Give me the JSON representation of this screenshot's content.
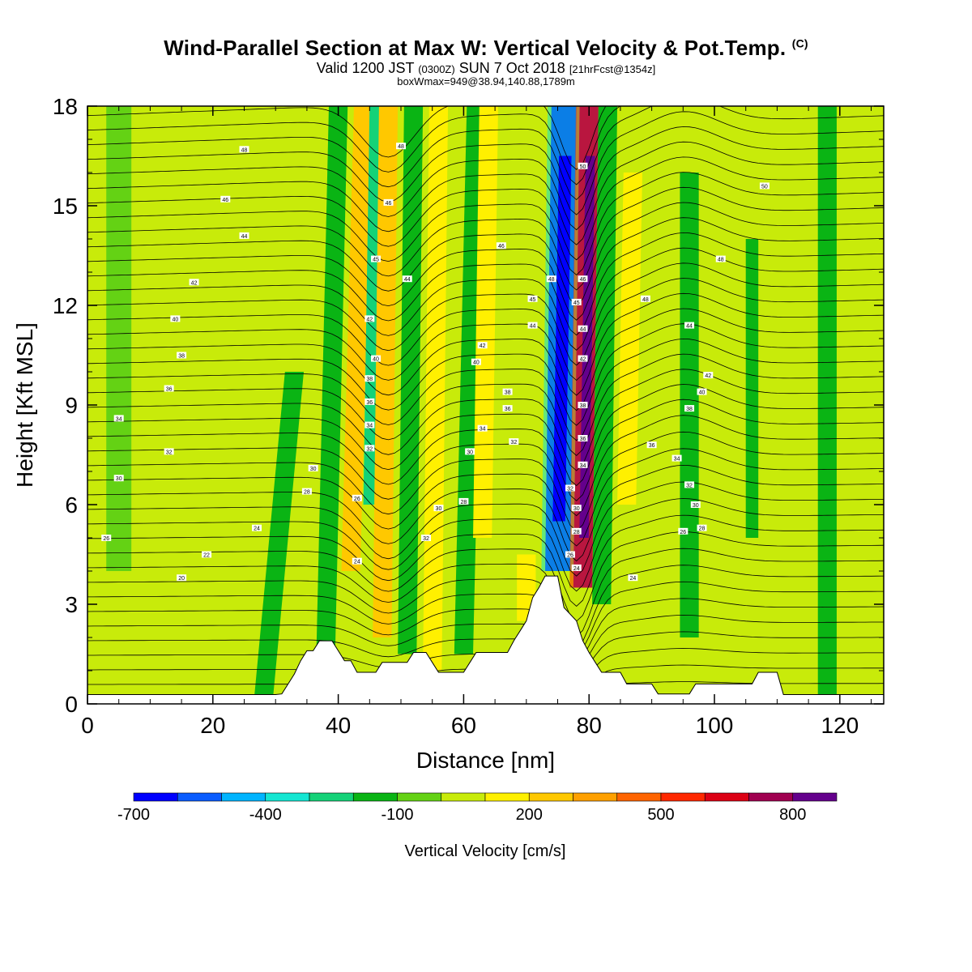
{
  "header": {
    "title_main": "Wind-Parallel Section at Max W: Vertical Velocity & Pot.Temp.",
    "title_mark": "(C)",
    "subtitle_a": "Valid 1200 JST",
    "subtitle_b": "(0300Z)",
    "subtitle_c": "SUN 7 Oct 2018",
    "subtitle_d": "[21hrFcst@1354z]",
    "box_info": "boxWmax=949@38.94,140.88,1789m"
  },
  "chart_data": {
    "type": "heatmap",
    "xlabel": "Distance [nm]",
    "ylabel": "Height [Kft MSL]",
    "xlim": [
      0,
      127
    ],
    "ylim": [
      0,
      18
    ],
    "x_ticks": [
      "0",
      "20",
      "40",
      "60",
      "80",
      "100",
      "120"
    ],
    "y_ticks": [
      "0",
      "3",
      "6",
      "9",
      "12",
      "15",
      "18"
    ],
    "colorbar": {
      "label": "Vertical Velocity [cm/s]",
      "min": -700,
      "max": 900,
      "step": 100,
      "tick_labels": [
        "-700",
        "-400",
        "-100",
        "200",
        "500",
        "800"
      ],
      "tick_values": [
        -700,
        -400,
        -100,
        200,
        500,
        800
      ],
      "colors": [
        "#0000ff",
        "#0a5cff",
        "#00b4ff",
        "#14e6d2",
        "#14d278",
        "#0ab414",
        "#64d214",
        "#c8eb0a",
        "#fff000",
        "#ffc800",
        "#ffa000",
        "#ff6400",
        "#ff2800",
        "#dc0014",
        "#a00050",
        "#64008c"
      ]
    },
    "terrain": [
      {
        "x": 0,
        "h": 0.28
      },
      {
        "x": 30,
        "h": 0.28
      },
      {
        "x": 31,
        "h": 0.3
      },
      {
        "x": 32,
        "h": 0.6
      },
      {
        "x": 33,
        "h": 0.9
      },
      {
        "x": 34,
        "h": 1.3
      },
      {
        "x": 35,
        "h": 1.6
      },
      {
        "x": 36,
        "h": 1.6
      },
      {
        "x": 37,
        "h": 1.9
      },
      {
        "x": 39,
        "h": 1.9
      },
      {
        "x": 40,
        "h": 1.6
      },
      {
        "x": 41,
        "h": 1.3
      },
      {
        "x": 42,
        "h": 1.3
      },
      {
        "x": 43,
        "h": 0.95
      },
      {
        "x": 46,
        "h": 0.95
      },
      {
        "x": 47,
        "h": 1.25
      },
      {
        "x": 51,
        "h": 1.25
      },
      {
        "x": 52,
        "h": 1.55
      },
      {
        "x": 54,
        "h": 1.55
      },
      {
        "x": 55,
        "h": 1.25
      },
      {
        "x": 56,
        "h": 0.95
      },
      {
        "x": 60,
        "h": 0.95
      },
      {
        "x": 61,
        "h": 1.25
      },
      {
        "x": 62,
        "h": 1.55
      },
      {
        "x": 67,
        "h": 1.55
      },
      {
        "x": 68,
        "h": 1.9
      },
      {
        "x": 69,
        "h": 2.2
      },
      {
        "x": 70,
        "h": 2.5
      },
      {
        "x": 71,
        "h": 3.2
      },
      {
        "x": 72,
        "h": 3.5
      },
      {
        "x": 73,
        "h": 3.85
      },
      {
        "x": 75,
        "h": 3.85
      },
      {
        "x": 76,
        "h": 2.9
      },
      {
        "x": 78,
        "h": 2.5
      },
      {
        "x": 79,
        "h": 1.9
      },
      {
        "x": 80,
        "h": 1.55
      },
      {
        "x": 81,
        "h": 1.25
      },
      {
        "x": 82,
        "h": 0.95
      },
      {
        "x": 85,
        "h": 0.95
      },
      {
        "x": 86,
        "h": 0.6
      },
      {
        "x": 90,
        "h": 0.6
      },
      {
        "x": 91,
        "h": 0.3
      },
      {
        "x": 96,
        "h": 0.3
      },
      {
        "x": 97,
        "h": 0.6
      },
      {
        "x": 106,
        "h": 0.6
      },
      {
        "x": 107,
        "h": 0.95
      },
      {
        "x": 110,
        "h": 0.95
      },
      {
        "x": 111,
        "h": 0.28
      },
      {
        "x": 127,
        "h": 0.28
      }
    ],
    "w_bands": [
      {
        "x": 5,
        "w": 4,
        "v": -90,
        "y1": 4,
        "y2": 18,
        "slant": 0
      },
      {
        "x": 14,
        "w": 3,
        "v": 90,
        "y1": 2,
        "y2": 18,
        "slant": 0
      },
      {
        "x": 28,
        "w": 3,
        "v": -110,
        "y1": 0,
        "y2": 10,
        "slant": 5
      },
      {
        "x": 38,
        "w": 3,
        "v": -140,
        "y1": 1.5,
        "y2": 18,
        "slant": 2
      },
      {
        "x": 42,
        "w": 3,
        "v": 230,
        "y1": 4,
        "y2": 18,
        "slant": 2
      },
      {
        "x": 45,
        "w": 2,
        "v": -260,
        "y1": 6,
        "y2": 18,
        "slant": 1
      },
      {
        "x": 47,
        "w": 3,
        "v": 280,
        "y1": 2,
        "y2": 18,
        "slant": 1
      },
      {
        "x": 51,
        "w": 3,
        "v": -140,
        "y1": 1.5,
        "y2": 18,
        "slant": 1
      },
      {
        "x": 55,
        "w": 3,
        "v": 170,
        "y1": 1,
        "y2": 18,
        "slant": 1
      },
      {
        "x": 60,
        "w": 3,
        "v": -140,
        "y1": 1.5,
        "y2": 18,
        "slant": 2
      },
      {
        "x": 63,
        "w": 3,
        "v": 150,
        "y1": 5,
        "y2": 18,
        "slant": 1
      },
      {
        "x": 70,
        "w": 3,
        "v": 170,
        "y1": 2.5,
        "y2": 4.5,
        "slant": 0
      },
      {
        "x": 75,
        "w": 4,
        "v": -650,
        "y1": 4,
        "y2": 18,
        "slant": 1
      },
      {
        "x": 79,
        "w": 3,
        "v": 820,
        "y1": 3.5,
        "y2": 18,
        "slant": 1
      },
      {
        "x": 82,
        "w": 3,
        "v": -150,
        "y1": 3,
        "y2": 18,
        "slant": 1
      },
      {
        "x": 86,
        "w": 3,
        "v": 170,
        "y1": 6,
        "y2": 16,
        "slant": 1
      },
      {
        "x": 96,
        "w": 3,
        "v": -150,
        "y1": 2,
        "y2": 16,
        "slant": 0
      },
      {
        "x": 106,
        "w": 2,
        "v": -130,
        "y1": 5,
        "y2": 14,
        "slant": 0
      },
      {
        "x": 118,
        "w": 3,
        "v": -110,
        "y1": 0,
        "y2": 18,
        "slant": 0
      }
    ],
    "theta_labels": [
      {
        "x": 25,
        "y": 16.7,
        "t": "48"
      },
      {
        "x": 22,
        "y": 15.2,
        "t": "46"
      },
      {
        "x": 25,
        "y": 14.1,
        "t": "44"
      },
      {
        "x": 17,
        "y": 12.7,
        "t": "42"
      },
      {
        "x": 14,
        "y": 11.6,
        "t": "40"
      },
      {
        "x": 15,
        "y": 10.5,
        "t": "38"
      },
      {
        "x": 13,
        "y": 9.5,
        "t": "36"
      },
      {
        "x": 5,
        "y": 8.6,
        "t": "34"
      },
      {
        "x": 13,
        "y": 7.6,
        "t": "32"
      },
      {
        "x": 5,
        "y": 6.8,
        "t": "30"
      },
      {
        "x": 3,
        "y": 5.0,
        "t": "26"
      },
      {
        "x": 27,
        "y": 5.3,
        "t": "24"
      },
      {
        "x": 19,
        "y": 4.5,
        "t": "22"
      },
      {
        "x": 15,
        "y": 3.8,
        "t": "20"
      },
      {
        "x": 36,
        "y": 7.1,
        "t": "30"
      },
      {
        "x": 35,
        "y": 6.4,
        "t": "28"
      },
      {
        "x": 43,
        "y": 6.2,
        "t": "26"
      },
      {
        "x": 43,
        "y": 4.3,
        "t": "24"
      },
      {
        "x": 50,
        "y": 16.8,
        "t": "48"
      },
      {
        "x": 48,
        "y": 15.1,
        "t": "46"
      },
      {
        "x": 46,
        "y": 13.4,
        "t": "45"
      },
      {
        "x": 51,
        "y": 12.8,
        "t": "44"
      },
      {
        "x": 45,
        "y": 11.6,
        "t": "42"
      },
      {
        "x": 46,
        "y": 10.4,
        "t": "40"
      },
      {
        "x": 45,
        "y": 9.8,
        "t": "38"
      },
      {
        "x": 45,
        "y": 9.1,
        "t": "36"
      },
      {
        "x": 45,
        "y": 8.4,
        "t": "34"
      },
      {
        "x": 45,
        "y": 7.7,
        "t": "32"
      },
      {
        "x": 54,
        "y": 5.0,
        "t": "32"
      },
      {
        "x": 56,
        "y": 5.9,
        "t": "30"
      },
      {
        "x": 60,
        "y": 6.1,
        "t": "28"
      },
      {
        "x": 63,
        "y": 10.8,
        "t": "42"
      },
      {
        "x": 62,
        "y": 10.3,
        "t": "40"
      },
      {
        "x": 67,
        "y": 9.4,
        "t": "38"
      },
      {
        "x": 67,
        "y": 8.9,
        "t": "36"
      },
      {
        "x": 63,
        "y": 8.3,
        "t": "34"
      },
      {
        "x": 61,
        "y": 7.6,
        "t": "30"
      },
      {
        "x": 68,
        "y": 7.9,
        "t": "32"
      },
      {
        "x": 66,
        "y": 13.8,
        "t": "46"
      },
      {
        "x": 71,
        "y": 12.2,
        "t": "45"
      },
      {
        "x": 71,
        "y": 11.4,
        "t": "44"
      },
      {
        "x": 74,
        "y": 12.8,
        "t": "48"
      },
      {
        "x": 79,
        "y": 16.2,
        "t": "50"
      },
      {
        "x": 79,
        "y": 12.8,
        "t": "46"
      },
      {
        "x": 78,
        "y": 12.1,
        "t": "45"
      },
      {
        "x": 79,
        "y": 11.3,
        "t": "44"
      },
      {
        "x": 79,
        "y": 10.4,
        "t": "42"
      },
      {
        "x": 79,
        "y": 9.0,
        "t": "38"
      },
      {
        "x": 79,
        "y": 8.0,
        "t": "36"
      },
      {
        "x": 79,
        "y": 7.2,
        "t": "34"
      },
      {
        "x": 77,
        "y": 6.5,
        "t": "32"
      },
      {
        "x": 78,
        "y": 5.9,
        "t": "30"
      },
      {
        "x": 78,
        "y": 5.2,
        "t": "28"
      },
      {
        "x": 77,
        "y": 4.5,
        "t": "26"
      },
      {
        "x": 78,
        "y": 4.1,
        "t": "24"
      },
      {
        "x": 89,
        "y": 12.2,
        "t": "48"
      },
      {
        "x": 96,
        "y": 11.4,
        "t": "44"
      },
      {
        "x": 99,
        "y": 9.9,
        "t": "42"
      },
      {
        "x": 98,
        "y": 9.4,
        "t": "40"
      },
      {
        "x": 96,
        "y": 8.9,
        "t": "38"
      },
      {
        "x": 90,
        "y": 7.8,
        "t": "36"
      },
      {
        "x": 94,
        "y": 7.4,
        "t": "34"
      },
      {
        "x": 96,
        "y": 6.6,
        "t": "32"
      },
      {
        "x": 97,
        "y": 6.0,
        "t": "30"
      },
      {
        "x": 98,
        "y": 5.3,
        "t": "28"
      },
      {
        "x": 95,
        "y": 5.2,
        "t": "26"
      },
      {
        "x": 87,
        "y": 3.8,
        "t": "24"
      },
      {
        "x": 101,
        "y": 13.4,
        "t": "48"
      },
      {
        "x": 108,
        "y": 15.6,
        "t": "50"
      }
    ]
  }
}
